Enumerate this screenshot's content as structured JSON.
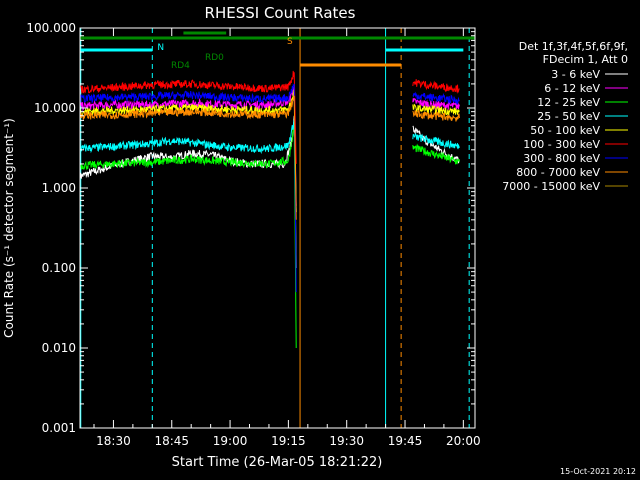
{
  "chart_data": {
    "type": "line",
    "title": "RHESSI Count Rates",
    "xlabel": "Start Time (26-Mar-05 18:21:22)",
    "ylabel": "Count Rate (s⁻¹ detector segment⁻¹)",
    "x_unit": "minutes after 18:00 UT",
    "xlim": [
      21.4,
      123
    ],
    "ylim": [
      0.001,
      100
    ],
    "y_scale": "log",
    "x_ticks": [
      {
        "x": 30,
        "label": "18:30"
      },
      {
        "x": 45,
        "label": "18:45"
      },
      {
        "x": 60,
        "label": "19:00"
      },
      {
        "x": 75,
        "label": "19:15"
      },
      {
        "x": 90,
        "label": "19:30"
      },
      {
        "x": 105,
        "label": "19:45"
      },
      {
        "x": 120,
        "label": "20:00"
      }
    ],
    "y_ticks": [
      {
        "y": 100,
        "label": "100.000"
      },
      {
        "y": 10,
        "label": "10.000"
      },
      {
        "y": 1,
        "label": "1.000"
      },
      {
        "y": 0.1,
        "label": "0.100"
      },
      {
        "y": 0.01,
        "label": "0.010"
      },
      {
        "y": 0.001,
        "label": "0.001"
      }
    ],
    "legend_header": [
      "Det 1f,3f,4f,5f,6f,9f,",
      "FDecim 1, Att 0"
    ],
    "series": [
      {
        "name": "3 - 6 keV",
        "color": "#ffffff",
        "points": [
          [
            21.4,
            1.4
          ],
          [
            25,
            1.6
          ],
          [
            30,
            1.9
          ],
          [
            35,
            2.2
          ],
          [
            40,
            2.5
          ],
          [
            45,
            2.4
          ],
          [
            50,
            2.7
          ],
          [
            55,
            2.6
          ],
          [
            60,
            2.2
          ],
          [
            65,
            2.0
          ],
          [
            70,
            2.0
          ],
          [
            74,
            2.0
          ],
          [
            76,
            4.0
          ],
          [
            76.5,
            8.0
          ],
          [
            77,
            0.1
          ]
        ],
        "points2": [
          [
            107,
            5.5
          ],
          [
            110,
            4.0
          ],
          [
            113,
            3.2
          ],
          [
            116,
            2.6
          ],
          [
            119,
            2.2
          ]
        ]
      },
      {
        "name": "6 - 12 keV",
        "color": "#ff00ff",
        "points": [
          [
            21.4,
            10.5
          ],
          [
            30,
            11.0
          ],
          [
            40,
            11.0
          ],
          [
            50,
            11.5
          ],
          [
            60,
            11.0
          ],
          [
            70,
            11.0
          ],
          [
            75,
            12.0
          ],
          [
            76.5,
            18.0
          ],
          [
            77,
            0.6
          ]
        ],
        "points2": [
          [
            107,
            12.0
          ],
          [
            112,
            11.0
          ],
          [
            119,
            10.5
          ]
        ]
      },
      {
        "name": "12 - 25 keV",
        "color": "#00ff00",
        "points": [
          [
            21.4,
            1.9
          ],
          [
            30,
            2.0
          ],
          [
            40,
            2.1
          ],
          [
            50,
            2.3
          ],
          [
            60,
            2.1
          ],
          [
            70,
            2.0
          ],
          [
            75,
            2.2
          ],
          [
            76.5,
            6.0
          ],
          [
            77,
            0.01
          ]
        ],
        "points2": [
          [
            107,
            3.2
          ],
          [
            112,
            2.7
          ],
          [
            119,
            2.1
          ]
        ]
      },
      {
        "name": "25 - 50 keV",
        "color": "#00ffff",
        "points": [
          [
            21.4,
            3.1
          ],
          [
            30,
            3.3
          ],
          [
            40,
            3.6
          ],
          [
            45,
            3.9
          ],
          [
            50,
            3.7
          ],
          [
            60,
            3.2
          ],
          [
            70,
            3.1
          ],
          [
            75,
            3.4
          ],
          [
            76.5,
            7.0
          ],
          [
            77,
            0.5
          ]
        ],
        "points2": [
          [
            107,
            4.4
          ],
          [
            112,
            3.9
          ],
          [
            119,
            3.3
          ]
        ]
      },
      {
        "name": "50 - 100 keV",
        "color": "#ffff00",
        "points": [
          [
            21.4,
            9.0
          ],
          [
            30,
            9.3
          ],
          [
            40,
            9.6
          ],
          [
            50,
            10.0
          ],
          [
            60,
            9.6
          ],
          [
            70,
            9.3
          ],
          [
            75,
            9.6
          ],
          [
            76.5,
            16.0
          ],
          [
            77,
            0.5
          ]
        ],
        "points2": [
          [
            107,
            10.0
          ],
          [
            112,
            9.5
          ],
          [
            119,
            9.0
          ]
        ]
      },
      {
        "name": "100 - 300 keV",
        "color": "#ff0000",
        "points": [
          [
            21.4,
            17.0
          ],
          [
            30,
            18.0
          ],
          [
            40,
            19.5
          ],
          [
            50,
            20.0
          ],
          [
            60,
            18.5
          ],
          [
            70,
            17.5
          ],
          [
            75,
            18.5
          ],
          [
            76.5,
            28.0
          ],
          [
            77,
            2.0
          ]
        ],
        "points2": [
          [
            107,
            21.0
          ],
          [
            112,
            19.0
          ],
          [
            119,
            17.5
          ]
        ]
      },
      {
        "name": "300 - 800 keV",
        "color": "#0000ff",
        "points": [
          [
            21.4,
            13.0
          ],
          [
            30,
            13.5
          ],
          [
            40,
            14.0
          ],
          [
            50,
            14.5
          ],
          [
            60,
            13.5
          ],
          [
            70,
            13.0
          ],
          [
            75,
            13.5
          ],
          [
            76.5,
            20.0
          ],
          [
            77,
            0.05
          ]
        ],
        "points2": [
          [
            107,
            14.5
          ],
          [
            112,
            13.5
          ],
          [
            119,
            12.5
          ]
        ]
      },
      {
        "name": "800 - 7000 keV",
        "color": "#ff8c00",
        "points": [
          [
            21.4,
            8.0
          ],
          [
            30,
            8.2
          ],
          [
            40,
            8.6
          ],
          [
            50,
            9.0
          ],
          [
            60,
            8.5
          ],
          [
            70,
            8.2
          ],
          [
            75,
            8.5
          ],
          [
            76.5,
            14.0
          ],
          [
            77,
            0.4
          ]
        ],
        "points2": [
          [
            107,
            8.5
          ],
          [
            112,
            8.0
          ],
          [
            119,
            7.5
          ]
        ]
      },
      {
        "name": "7000 - 15000 keV",
        "color": "#aa8800",
        "points": [],
        "points2": []
      }
    ],
    "flag_bars": [
      {
        "label": "N",
        "color": "#00ffff",
        "y": 50,
        "segments": [
          [
            21.4,
            40
          ],
          [
            100,
            120
          ]
        ]
      },
      {
        "label": "S",
        "color": "#ff8c00",
        "y": 65,
        "segments": [
          [
            78,
            104
          ]
        ]
      },
      {
        "label": "RD4",
        "color": "#008800",
        "y": 33,
        "segments": [
          [
            48,
            59
          ]
        ]
      },
      {
        "label": "RD0",
        "color": "#008800",
        "y": 38,
        "segments": [
          [
            21.4,
            123
          ]
        ]
      }
    ],
    "vertical_lines": [
      {
        "x": 21.6,
        "color": "#00ffff",
        "dashed": false
      },
      {
        "x": 40,
        "color": "#00ffff",
        "dashed": true
      },
      {
        "x": 78,
        "color": "#ff8c00",
        "dashed": false
      },
      {
        "x": 100,
        "color": "#00ffff",
        "dashed": false
      },
      {
        "x": 104,
        "color": "#ff8c00",
        "dashed": true
      },
      {
        "x": 121.5,
        "color": "#00ffff",
        "dashed": true
      }
    ],
    "footer": "15-Oct-2021 20:12"
  }
}
